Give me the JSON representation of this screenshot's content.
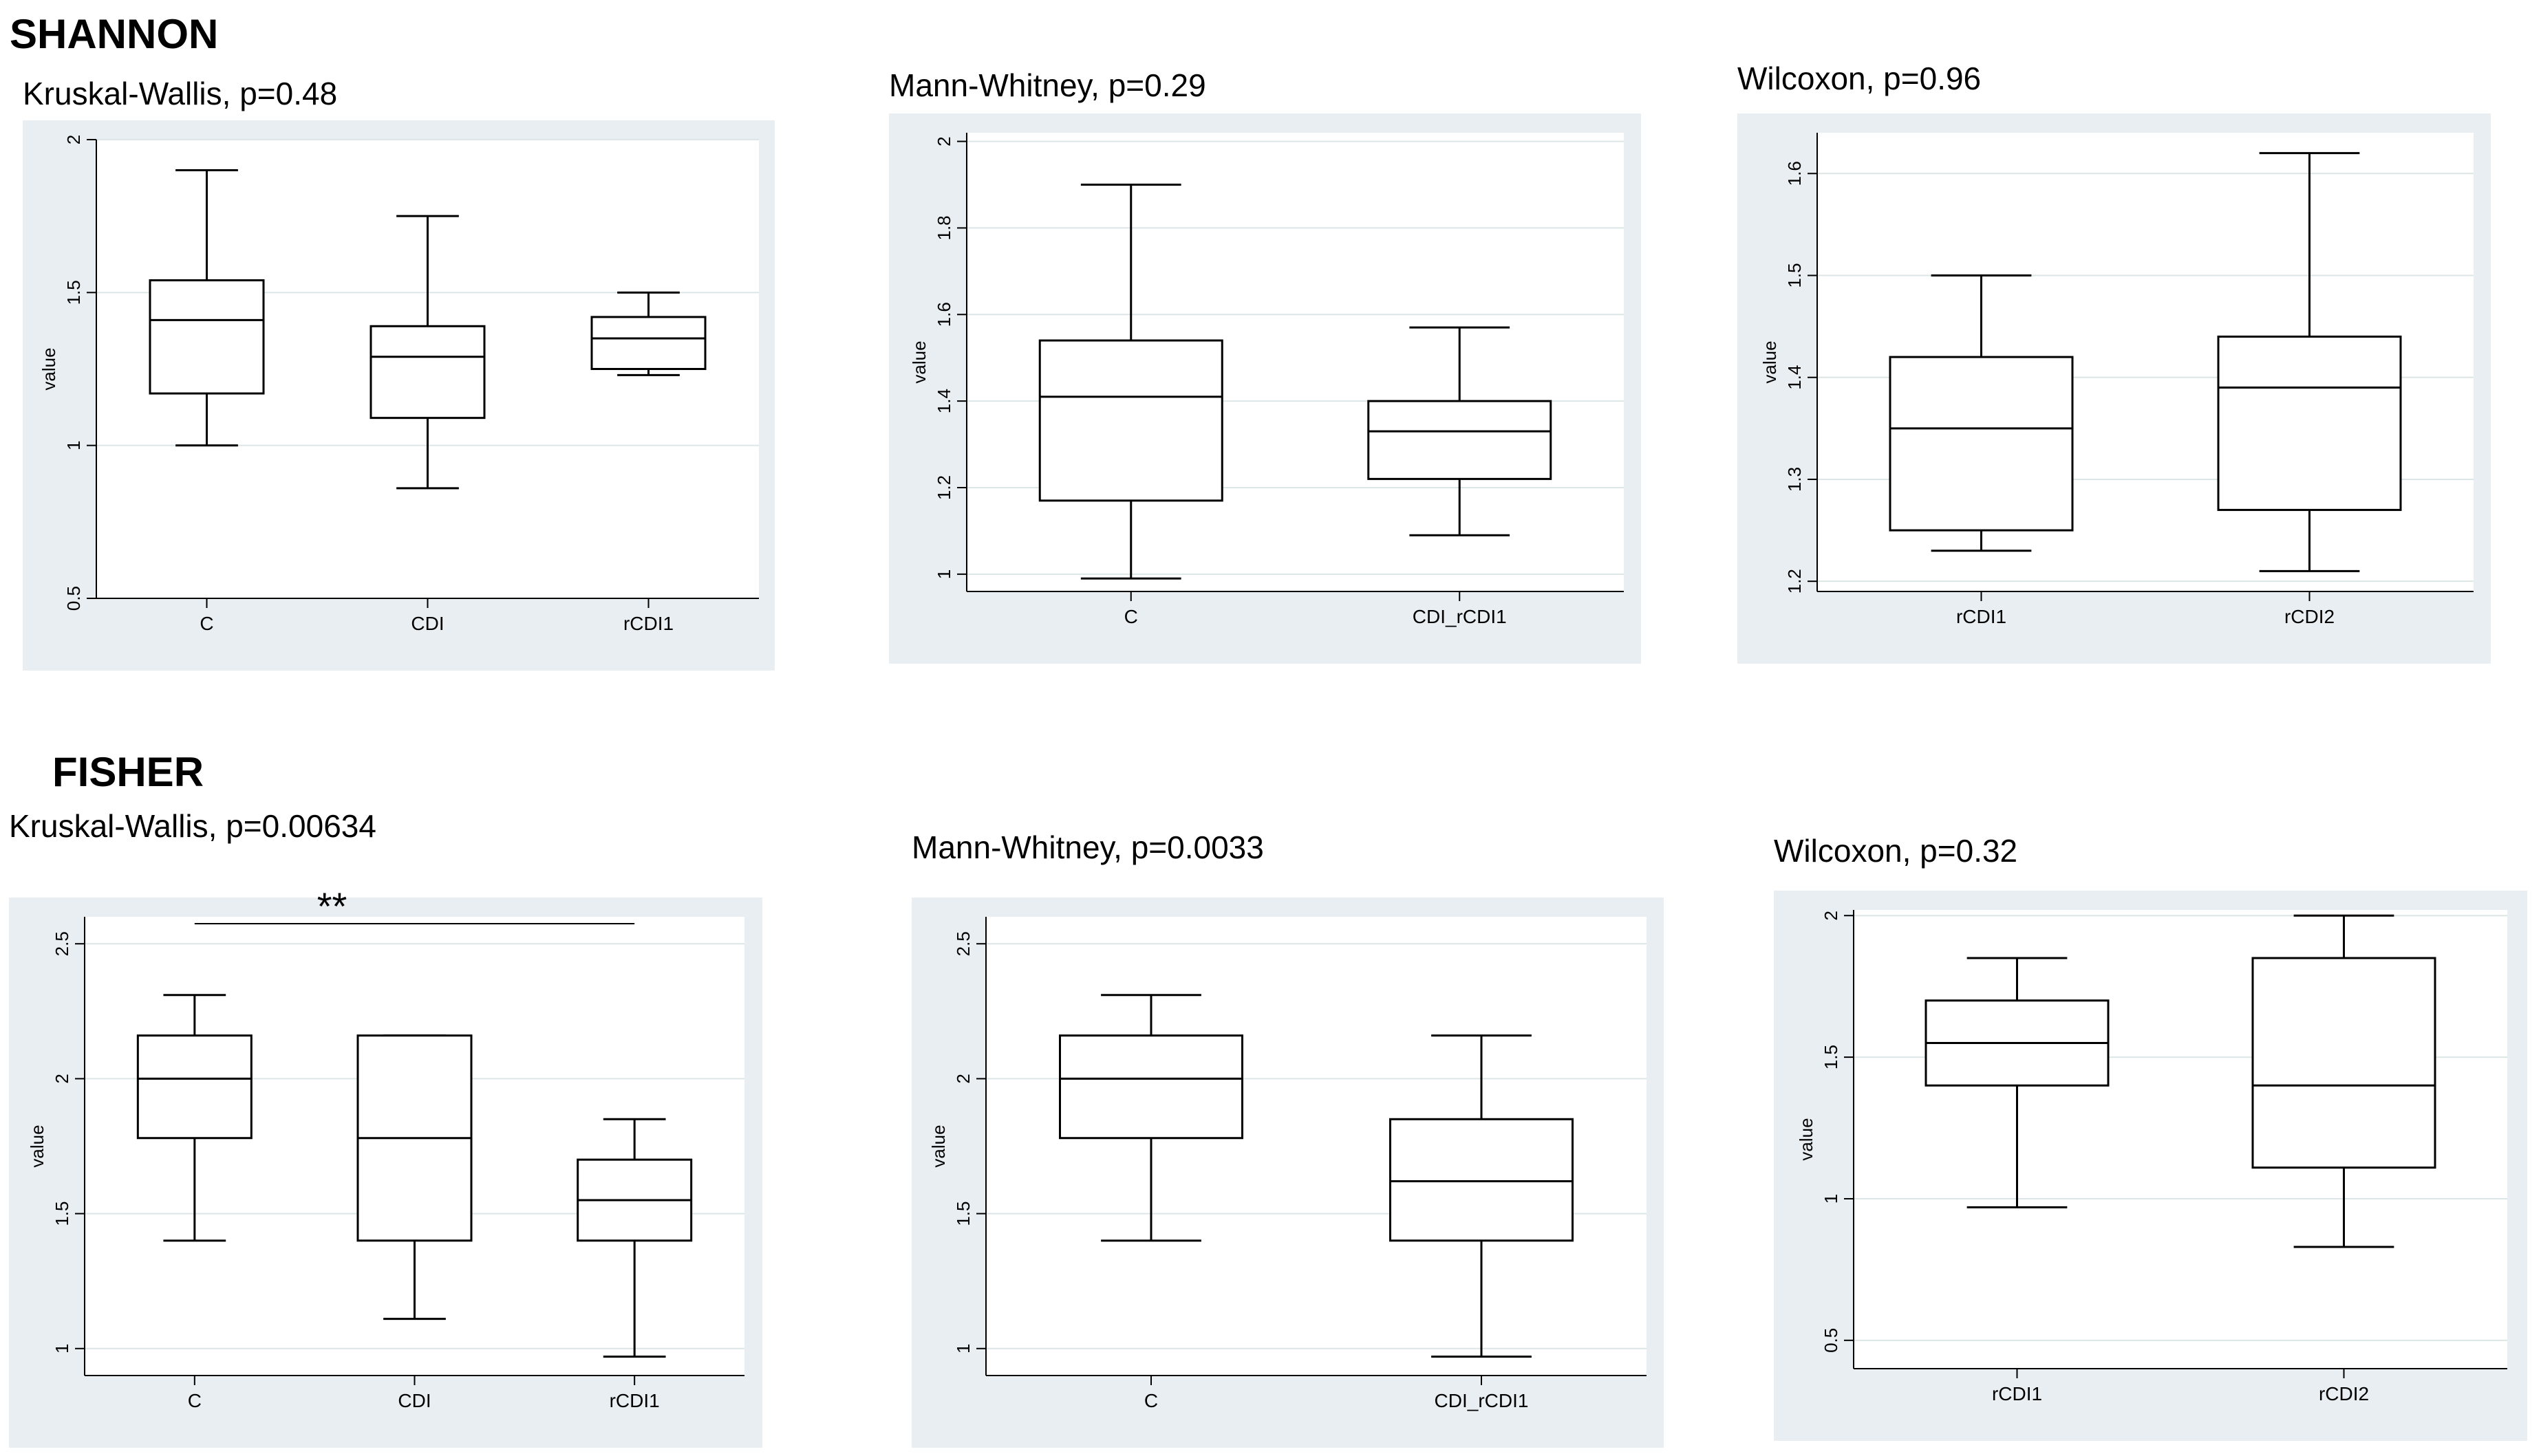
{
  "sections": [
    {
      "id": "shannon",
      "heading": "SHANNON"
    },
    {
      "id": "fisher",
      "heading": "FISHER"
    }
  ],
  "chart_data": [
    {
      "type": "box",
      "section": "SHANNON",
      "title": "Kruskal-Wallis, p=0.48",
      "ylabel": "value",
      "ylim": [
        0.5,
        2
      ],
      "yticks": [
        0.5,
        1,
        1.5,
        2
      ],
      "categories": [
        "C",
        "CDI",
        "rCDI1"
      ],
      "boxes": [
        {
          "min": 1.0,
          "q1": 1.17,
          "median": 1.41,
          "q3": 1.54,
          "max": 1.9
        },
        {
          "min": 0.86,
          "q1": 1.09,
          "median": 1.29,
          "q3": 1.39,
          "max": 1.75
        },
        {
          "min": 1.23,
          "q1": 1.25,
          "median": 1.35,
          "q3": 1.42,
          "max": 1.5
        }
      ],
      "grid": true
    },
    {
      "type": "box",
      "section": "SHANNON",
      "title": "Mann-Whitney, p=0.29",
      "ylabel": "value",
      "ylim": [
        0.96,
        2.02
      ],
      "yticks": [
        1,
        1.2,
        1.4,
        1.6,
        1.8,
        2
      ],
      "categories": [
        "C",
        "CDI_rCDI1"
      ],
      "boxes": [
        {
          "min": 0.99,
          "q1": 1.17,
          "median": 1.41,
          "q3": 1.54,
          "max": 1.9
        },
        {
          "min": 1.09,
          "q1": 1.22,
          "median": 1.33,
          "q3": 1.4,
          "max": 1.57
        }
      ],
      "grid": true
    },
    {
      "type": "box",
      "section": "SHANNON",
      "title": "Wilcoxon, p=0.96",
      "ylabel": "value",
      "ylim": [
        1.19,
        1.64
      ],
      "yticks": [
        1.2,
        1.3,
        1.4,
        1.5,
        1.6
      ],
      "categories": [
        "rCDI1",
        "rCDI2"
      ],
      "boxes": [
        {
          "min": 1.23,
          "q1": 1.25,
          "median": 1.35,
          "q3": 1.42,
          "max": 1.5
        },
        {
          "min": 1.21,
          "q1": 1.27,
          "median": 1.39,
          "q3": 1.44,
          "max": 1.62
        }
      ],
      "grid": true
    },
    {
      "type": "box",
      "section": "FISHER",
      "title": "Kruskal-Wallis, p=0.00634",
      "ylabel": "value",
      "ylim": [
        0.9,
        2.6
      ],
      "yticks": [
        1,
        1.5,
        2,
        2.5
      ],
      "categories": [
        "C",
        "CDI",
        "rCDI1"
      ],
      "boxes": [
        {
          "min": 1.4,
          "q1": 1.78,
          "median": 2.0,
          "q3": 2.16,
          "max": 2.31
        },
        {
          "min": 1.11,
          "q1": 1.4,
          "median": 1.78,
          "q3": 2.16,
          "max": 2.16
        },
        {
          "min": 0.97,
          "q1": 1.4,
          "median": 1.55,
          "q3": 1.7,
          "max": 1.85
        }
      ],
      "significance": {
        "from": "C",
        "to": "rCDI1",
        "label": "**"
      },
      "grid": true
    },
    {
      "type": "box",
      "section": "FISHER",
      "title": "Mann-Whitney, p=0.0033",
      "ylabel": "value",
      "ylim": [
        0.9,
        2.6
      ],
      "yticks": [
        1,
        1.5,
        2,
        2.5
      ],
      "categories": [
        "C",
        "CDI_rCDI1"
      ],
      "boxes": [
        {
          "min": 1.4,
          "q1": 1.78,
          "median": 2.0,
          "q3": 2.16,
          "max": 2.31
        },
        {
          "min": 0.97,
          "q1": 1.4,
          "median": 1.62,
          "q3": 1.85,
          "max": 2.16
        }
      ],
      "grid": true
    },
    {
      "type": "box",
      "section": "FISHER",
      "title": "Wilcoxon, p=0.32",
      "ylabel": "value",
      "ylim": [
        0.4,
        2.02
      ],
      "yticks": [
        0.5,
        1,
        1.5,
        2
      ],
      "categories": [
        "rCDI1",
        "rCDI2"
      ],
      "boxes": [
        {
          "min": 0.97,
          "q1": 1.4,
          "median": 1.55,
          "q3": 1.7,
          "max": 1.85
        },
        {
          "min": 0.83,
          "q1": 1.11,
          "median": 1.4,
          "q3": 1.85,
          "max": 2.0
        }
      ],
      "grid": true
    }
  ]
}
